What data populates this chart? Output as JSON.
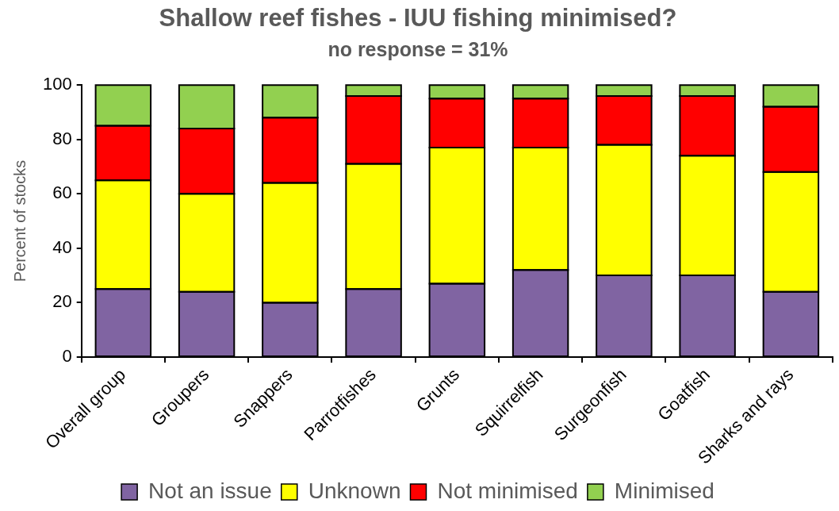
{
  "chart_data": {
    "type": "bar",
    "title": "Shallow reef fishes - IUU fishing minimised?",
    "subtitle": "no response = 31%",
    "ylabel": "Percent of stocks",
    "categories": [
      "Overall group",
      "Groupers",
      "Snappers",
      "Parrotfishes",
      "Grunts",
      "Squirrelfish",
      "Surgeonfish",
      "Goatfish",
      "Sharks and rays"
    ],
    "stacked": true,
    "ylim": [
      0,
      100
    ],
    "yticks": [
      0,
      20,
      40,
      60,
      80,
      100
    ],
    "legend": "bottom",
    "series": [
      {
        "name": "Not an issue",
        "color": "#8064a2",
        "values": [
          25,
          24,
          20,
          25,
          27,
          32,
          30,
          30,
          24
        ]
      },
      {
        "name": "Unknown",
        "color": "#ffff00",
        "values": [
          40,
          36,
          44,
          46,
          50,
          45,
          48,
          44,
          44
        ]
      },
      {
        "name": "Not minimised",
        "color": "#ff0000",
        "values": [
          20,
          24,
          24,
          25,
          18,
          18,
          18,
          22,
          24
        ]
      },
      {
        "name": "Minimised",
        "color": "#92d050",
        "values": [
          15,
          16,
          12,
          4,
          5,
          5,
          4,
          4,
          8
        ]
      }
    ]
  }
}
